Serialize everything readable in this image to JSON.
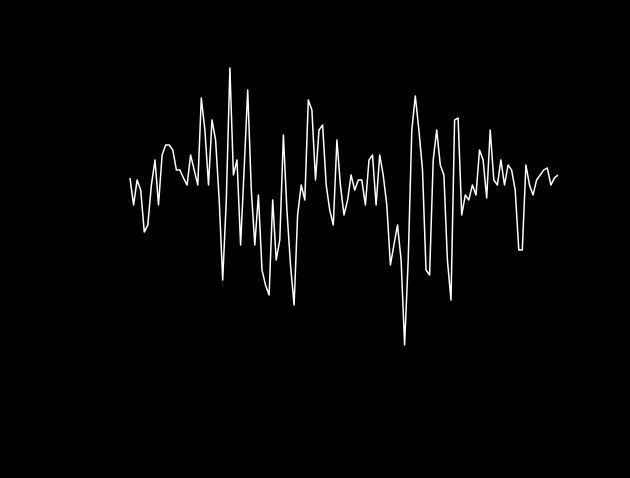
{
  "chart_data": {
    "type": "line",
    "color": "#ffffff",
    "background": "#000000",
    "ylim": [
      -140,
      140
    ],
    "values": [
      29,
      2,
      27,
      17,
      -25,
      -18,
      22,
      47,
      2,
      52,
      62,
      62,
      57,
      37,
      37,
      29,
      22,
      52,
      37,
      22,
      109,
      77,
      22,
      87,
      67,
      7,
      -73,
      7,
      139,
      32,
      47,
      -38,
      37,
      117,
      17,
      -38,
      12,
      -63,
      -78,
      -88,
      7,
      -53,
      -33,
      72,
      -3,
      -58,
      -98,
      -8,
      22,
      7,
      107,
      97,
      27,
      77,
      82,
      22,
      -3,
      -18,
      67,
      22,
      -8,
      7,
      32,
      17,
      27,
      27,
      2,
      47,
      52,
      2,
      52,
      32,
      2,
      -58,
      -38,
      -18,
      -53,
      -138,
      -53,
      77,
      111,
      77,
      37,
      -63,
      -68,
      47,
      77,
      42,
      32,
      -53,
      -93,
      87,
      89,
      -8,
      12,
      7,
      22,
      12,
      57,
      47,
      9,
      77,
      27,
      22,
      47,
      22,
      42,
      37,
      17,
      -43,
      -43,
      42,
      22,
      12,
      27,
      32,
      37,
      39,
      22,
      29,
      32
    ]
  }
}
